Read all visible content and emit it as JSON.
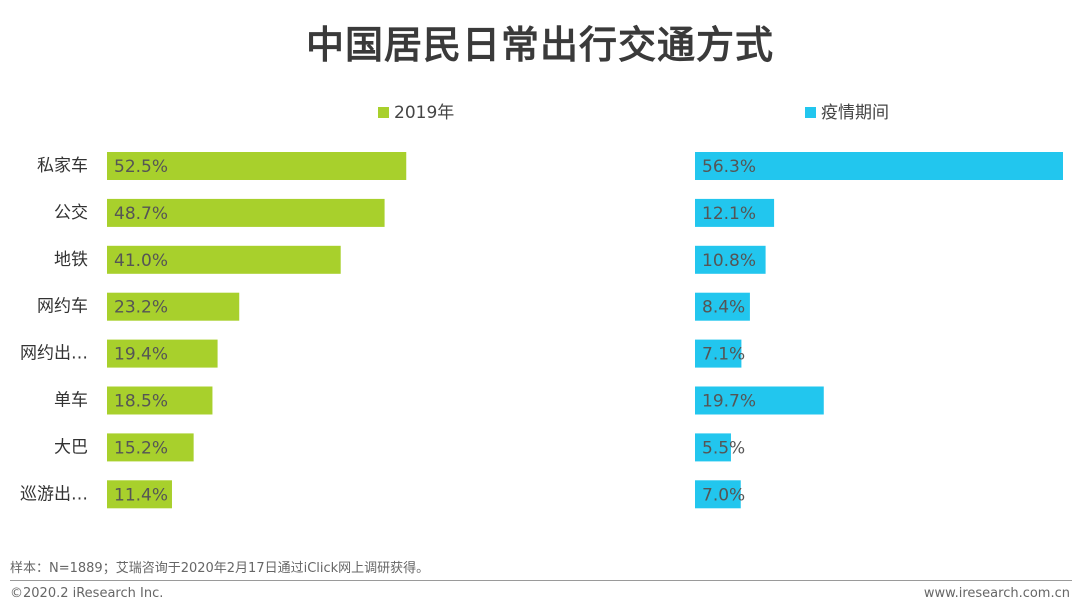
{
  "title": "中国居民日常出行交通方式",
  "chart_data": [
    {
      "type": "bar",
      "orientation": "horizontal",
      "series": [
        {
          "name": "2019年",
          "values": [
            52.5,
            48.7,
            41.0,
            23.2,
            19.4,
            18.5,
            15.2,
            11.4
          ]
        }
      ],
      "value_labels": [
        "52.5%",
        "48.7%",
        "41.0%",
        "23.2%",
        "19.4%",
        "18.5%",
        "15.2%",
        "11.4%"
      ],
      "color": "#a8d02c",
      "xlim": [
        0,
        60
      ]
    },
    {
      "type": "bar",
      "orientation": "horizontal",
      "series": [
        {
          "name": "疫情期间",
          "values": [
            56.3,
            12.1,
            10.8,
            8.4,
            7.1,
            19.7,
            5.5,
            7.0
          ]
        }
      ],
      "value_labels": [
        "56.3%",
        "12.1%",
        "10.8%",
        "8.4%",
        "7.1%",
        "19.7%",
        "5.5%",
        "7.0%"
      ],
      "color": "#22c6ee",
      "xlim": [
        0,
        56.3
      ]
    }
  ],
  "categories": [
    "私家车",
    "公交",
    "地铁",
    "网约车",
    "网约出…",
    "单车",
    "大巴",
    "巡游出…"
  ],
  "footnote": "样本：N=1889；艾瑞咨询于2020年2月17日通过iClick网上调研获得。",
  "copyright": "©2020.2 iResearch Inc.",
  "website": "www.iresearch.com.cn"
}
